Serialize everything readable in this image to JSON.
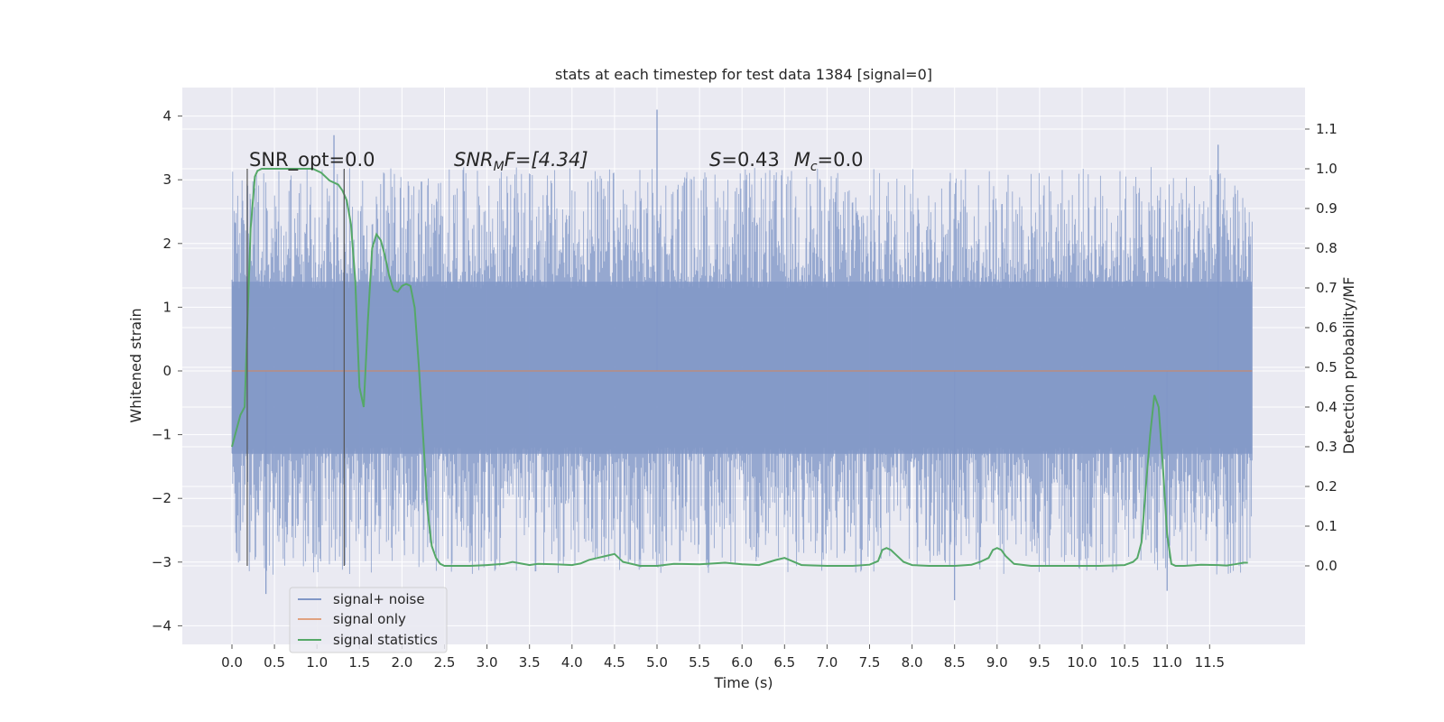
{
  "chart_data": {
    "type": "line",
    "title": "stats at each timestep for test data 1384 [signal=0]",
    "xlabel": "Time (s)",
    "ylabel": "Whitened strain",
    "ylabel_right": "Detection probability/MF",
    "xlim": [
      -0.1,
      12.9
    ],
    "ylim": [
      -4.2,
      4.5
    ],
    "ylim_right": [
      -0.2,
      1.2
    ],
    "x_ticks": [
      "0.0",
      "0.5",
      "1.0",
      "1.5",
      "2.0",
      "2.5",
      "3.0",
      "3.5",
      "4.0",
      "4.5",
      "5.0",
      "5.5",
      "6.0",
      "6.5",
      "7.0",
      "7.5",
      "8.0",
      "8.5",
      "9.0",
      "9.5",
      "10.0",
      "10.5",
      "11.0",
      "11.5"
    ],
    "y_ticks_left": [
      "4",
      "3",
      "2",
      "1",
      "0",
      "−1",
      "−2",
      "−3",
      "−4"
    ],
    "y_ticks_right": [
      "1.1",
      "1.0",
      "0.9",
      "0.8",
      "0.7",
      "0.6",
      "0.5",
      "0.4",
      "0.3",
      "0.2",
      "0.1",
      "0.0"
    ],
    "grid": true,
    "legend_placement": "lower-left",
    "annotations": {
      "snr_opt": "SNR_opt=0.0",
      "snr_mf_sym": "SNR",
      "snr_mf_sub": "M",
      "snr_mf_rest": "F=[4.34]",
      "s_sym": "S",
      "s_val": "=0.43",
      "mc_sym": "M",
      "mc_sub": "c",
      "mc_val": "=0.0"
    },
    "vlines_x": [
      0.18,
      1.32
    ],
    "series": [
      {
        "name": "signal+ noise",
        "axis": "left",
        "color": "#8197c7",
        "kind": "noisy strain",
        "x_range": [
          0.0,
          12.0
        ],
        "envelope": {
          "bulk_low": -1.3,
          "bulk_high": 1.4,
          "min": -3.6,
          "max": 4.1
        },
        "spikes": [
          {
            "x": 5.0,
            "y": 4.1
          },
          {
            "x": 1.2,
            "y": 3.7
          },
          {
            "x": 11.6,
            "y": 3.55
          },
          {
            "x": 8.5,
            "y": -3.6
          },
          {
            "x": 11.0,
            "y": -3.45
          },
          {
            "x": 0.4,
            "y": -3.5
          }
        ]
      },
      {
        "name": "signal only",
        "axis": "left",
        "color": "#dd8452",
        "x": [
          0.0,
          12.0
        ],
        "y": [
          0.0,
          0.0
        ]
      },
      {
        "name": "signal statistics",
        "axis": "right",
        "color": "#55a868",
        "x": [
          0.0,
          0.05,
          0.1,
          0.15,
          0.18,
          0.22,
          0.27,
          0.3,
          0.35,
          0.45,
          0.6,
          0.8,
          0.95,
          1.05,
          1.15,
          1.25,
          1.3,
          1.35,
          1.4,
          1.45,
          1.5,
          1.55,
          1.6,
          1.65,
          1.7,
          1.75,
          1.8,
          1.85,
          1.9,
          1.95,
          2.0,
          2.05,
          2.1,
          2.15,
          2.2,
          2.25,
          2.3,
          2.35,
          2.4,
          2.45,
          2.5,
          2.55,
          2.6,
          2.8,
          3.0,
          3.2,
          3.3,
          3.4,
          3.5,
          3.6,
          3.8,
          4.0,
          4.1,
          4.2,
          4.3,
          4.4,
          4.5,
          4.6,
          4.8,
          5.0,
          5.2,
          5.5,
          5.8,
          6.0,
          6.2,
          6.4,
          6.5,
          6.7,
          7.0,
          7.3,
          7.5,
          7.6,
          7.65,
          7.7,
          7.75,
          7.8,
          7.9,
          8.0,
          8.2,
          8.5,
          8.7,
          8.8,
          8.9,
          8.95,
          9.0,
          9.05,
          9.1,
          9.2,
          9.4,
          9.8,
          10.2,
          10.5,
          10.6,
          10.65,
          10.7,
          10.75,
          10.8,
          10.85,
          10.9,
          10.95,
          11.0,
          11.05,
          11.1,
          11.2,
          11.4,
          11.6,
          11.7,
          11.8,
          11.9,
          11.95
        ],
        "y": [
          0.3,
          0.34,
          0.38,
          0.4,
          0.6,
          0.85,
          0.98,
          0.995,
          1.0,
          1.0,
          1.0,
          1.0,
          1.0,
          0.99,
          0.97,
          0.96,
          0.945,
          0.92,
          0.86,
          0.72,
          0.45,
          0.4,
          0.62,
          0.8,
          0.835,
          0.82,
          0.78,
          0.73,
          0.695,
          0.69,
          0.705,
          0.71,
          0.705,
          0.65,
          0.5,
          0.32,
          0.14,
          0.05,
          0.02,
          0.005,
          0.0,
          0.0,
          0.0,
          0.0,
          0.002,
          0.005,
          0.01,
          0.006,
          0.002,
          0.005,
          0.004,
          0.002,
          0.006,
          0.015,
          0.02,
          0.025,
          0.03,
          0.01,
          0.0,
          0.0,
          0.005,
          0.004,
          0.008,
          0.004,
          0.002,
          0.015,
          0.02,
          0.002,
          0.0,
          0.0,
          0.003,
          0.012,
          0.04,
          0.045,
          0.04,
          0.03,
          0.01,
          0.002,
          0.0,
          0.0,
          0.003,
          0.01,
          0.02,
          0.04,
          0.045,
          0.04,
          0.025,
          0.005,
          0.0,
          0.0,
          0.0,
          0.002,
          0.01,
          0.02,
          0.06,
          0.2,
          0.33,
          0.43,
          0.4,
          0.25,
          0.08,
          0.005,
          0.0,
          0.0,
          0.003,
          0.002,
          0.001,
          0.004,
          0.008,
          0.008
        ]
      }
    ]
  }
}
